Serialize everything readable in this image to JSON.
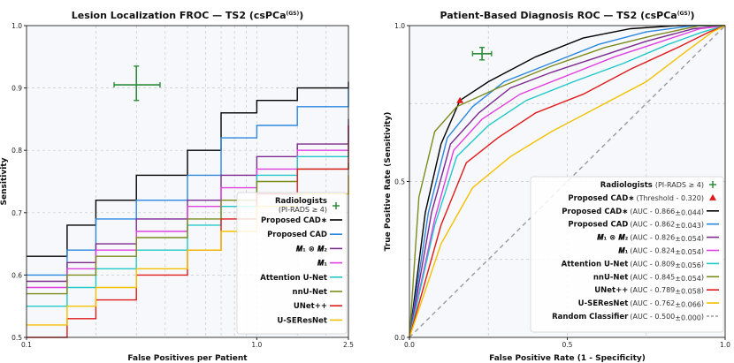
{
  "chart_data": [
    {
      "type": "line",
      "title": "Lesion Localization FROC — TS2 (csPCa",
      "title_sup": "(GS)",
      "title_close": ")",
      "xlabel": "False Positives per Patient",
      "ylabel": "Sensitivity",
      "xscale": "log",
      "xlim": [
        0.1,
        2.5
      ],
      "ylim": [
        0.5,
        1.0
      ],
      "xticks": [
        {
          "v": 0.1,
          "label": "0.1"
        },
        {
          "v": 1.0,
          "label": "1.0"
        },
        {
          "v": 2.5,
          "label": "2.5"
        }
      ],
      "yticks": [
        {
          "v": 0.5,
          "label": "0.5"
        },
        {
          "v": 0.6,
          "label": "0.6"
        },
        {
          "v": 0.7,
          "label": "0.7"
        },
        {
          "v": 0.8,
          "label": "0.8"
        },
        {
          "v": 0.9,
          "label": "0.9"
        },
        {
          "v": 1.0,
          "label": "1.0"
        }
      ],
      "radiologists": {
        "label": "Radiologists",
        "sublabel": "(PI-RADS ≥ 4)",
        "x": 0.3,
        "y": 0.905,
        "xerr": [
          0.24,
          0.38
        ],
        "yerr": [
          0.88,
          0.935
        ],
        "color": "#2e8b3a"
      },
      "series": [
        {
          "name": "Proposed CAD∗",
          "color": "#000000",
          "points": [
            [
              0.1,
              0.63
            ],
            [
              0.15,
              0.68
            ],
            [
              0.2,
              0.72
            ],
            [
              0.3,
              0.76
            ],
            [
              0.5,
              0.8
            ],
            [
              0.7,
              0.86
            ],
            [
              1.0,
              0.88
            ],
            [
              1.5,
              0.9
            ],
            [
              2.5,
              0.91
            ]
          ]
        },
        {
          "name": "Proposed CAD",
          "color": "#2b88e0",
          "points": [
            [
              0.1,
              0.6
            ],
            [
              0.15,
              0.64
            ],
            [
              0.2,
              0.69
            ],
            [
              0.3,
              0.72
            ],
            [
              0.5,
              0.76
            ],
            [
              0.7,
              0.82
            ],
            [
              1.0,
              0.84
            ],
            [
              1.5,
              0.87
            ],
            [
              2.5,
              0.9
            ]
          ]
        },
        {
          "name": "M1 ⊗ M2",
          "nameHtml": "𝑴₁ ⊗ 𝑴₂",
          "color": "#7b2a8e",
          "points": [
            [
              0.1,
              0.59
            ],
            [
              0.15,
              0.62
            ],
            [
              0.2,
              0.65
            ],
            [
              0.3,
              0.69
            ],
            [
              0.5,
              0.72
            ],
            [
              0.7,
              0.76
            ],
            [
              1.0,
              0.79
            ],
            [
              1.5,
              0.81
            ],
            [
              2.5,
              0.85
            ]
          ]
        },
        {
          "name": "M1",
          "nameHtml": "𝑴₁",
          "color": "#e040e0",
          "points": [
            [
              0.1,
              0.58
            ],
            [
              0.15,
              0.61
            ],
            [
              0.2,
              0.64
            ],
            [
              0.3,
              0.67
            ],
            [
              0.5,
              0.71
            ],
            [
              0.7,
              0.74
            ],
            [
              1.0,
              0.77
            ],
            [
              1.5,
              0.8
            ],
            [
              2.5,
              0.84
            ]
          ]
        },
        {
          "name": "Attention U-Net",
          "color": "#22c7c7",
          "points": [
            [
              0.1,
              0.55
            ],
            [
              0.15,
              0.58
            ],
            [
              0.2,
              0.61
            ],
            [
              0.3,
              0.64
            ],
            [
              0.5,
              0.68
            ],
            [
              0.7,
              0.71
            ],
            [
              1.0,
              0.76
            ],
            [
              1.5,
              0.79
            ],
            [
              2.5,
              0.83
            ]
          ]
        },
        {
          "name": "nnU-Net",
          "color": "#7d8a1c",
          "points": [
            [
              0.1,
              0.57
            ],
            [
              0.15,
              0.6
            ],
            [
              0.2,
              0.63
            ],
            [
              0.3,
              0.66
            ],
            [
              0.5,
              0.69
            ],
            [
              0.7,
              0.72
            ],
            [
              1.0,
              0.75
            ],
            [
              1.5,
              0.77
            ],
            [
              2.5,
              0.78
            ]
          ]
        },
        {
          "name": "UNet++",
          "color": "#e01a1a",
          "points": [
            [
              0.1,
              0.5
            ],
            [
              0.15,
              0.53
            ],
            [
              0.2,
              0.56
            ],
            [
              0.3,
              0.6
            ],
            [
              0.5,
              0.64
            ],
            [
              0.7,
              0.69
            ],
            [
              1.0,
              0.73
            ],
            [
              1.5,
              0.77
            ],
            [
              2.5,
              0.84
            ]
          ]
        },
        {
          "name": "U-SEResNet",
          "color": "#f5c000",
          "points": [
            [
              0.1,
              0.52
            ],
            [
              0.15,
              0.55
            ],
            [
              0.2,
              0.58
            ],
            [
              0.3,
              0.61
            ],
            [
              0.5,
              0.64
            ],
            [
              0.7,
              0.67
            ],
            [
              1.0,
              0.71
            ],
            [
              1.5,
              0.73
            ],
            [
              2.5,
              0.76
            ]
          ]
        }
      ]
    },
    {
      "type": "line",
      "title": "Patient-Based Diagnosis ROC — TS2 (csPCa",
      "title_sup": "(GS)",
      "title_close": ")",
      "xlabel": "False Positive Rate (1 - Specificity)",
      "ylabel": "True Positive Rate (Sensitivity)",
      "xlim": [
        0.0,
        1.0
      ],
      "ylim": [
        0.0,
        1.0
      ],
      "xticks": [
        {
          "v": 0.0,
          "label": "0.0"
        },
        {
          "v": 0.5,
          "label": "0.5"
        },
        {
          "v": 1.0,
          "label": "1.0"
        }
      ],
      "yticks": [
        {
          "v": 0.0,
          "label": "0.0"
        },
        {
          "v": 0.5,
          "label": "0.5"
        },
        {
          "v": 1.0,
          "label": "1.0"
        }
      ],
      "radiologists": {
        "label": "Radiologists",
        "sublabel": "(PI-RADS ≥ 4)",
        "x": 0.23,
        "y": 0.91,
        "xerr": [
          0.2,
          0.26
        ],
        "yerr": [
          0.89,
          0.93
        ],
        "color": "#2e8b3a"
      },
      "threshold": {
        "label": "Proposed CAD∗",
        "sublabel": "(Threshold - 0.320)",
        "x": 0.16,
        "y": 0.76,
        "color": "#e01a1a"
      },
      "series": [
        {
          "name": "Proposed CAD∗",
          "auc": "(AUC - 0.866",
          "ci": "±0.044",
          "color": "#000000",
          "points": [
            [
              0,
              0
            ],
            [
              0.05,
              0.4
            ],
            [
              0.1,
              0.62
            ],
            [
              0.16,
              0.76
            ],
            [
              0.25,
              0.82
            ],
            [
              0.4,
              0.9
            ],
            [
              0.55,
              0.96
            ],
            [
              0.7,
              0.99
            ],
            [
              0.85,
              1.0
            ],
            [
              1,
              1
            ]
          ]
        },
        {
          "name": "Proposed CAD",
          "auc": "(AUC - 0.862",
          "ci": "±0.043",
          "color": "#2b88e0",
          "points": [
            [
              0,
              0
            ],
            [
              0.06,
              0.4
            ],
            [
              0.12,
              0.64
            ],
            [
              0.2,
              0.74
            ],
            [
              0.3,
              0.82
            ],
            [
              0.45,
              0.88
            ],
            [
              0.6,
              0.94
            ],
            [
              0.75,
              0.98
            ],
            [
              0.9,
              1.0
            ],
            [
              1,
              1
            ]
          ]
        },
        {
          "name": "M1 ⊗ M2",
          "nameHtml": "𝑴₁ ⊗ 𝑴₂",
          "auc": "(AUC - 0.826",
          "ci": "±0.054",
          "color": "#7b2a8e",
          "points": [
            [
              0,
              0
            ],
            [
              0.07,
              0.4
            ],
            [
              0.13,
              0.62
            ],
            [
              0.22,
              0.72
            ],
            [
              0.32,
              0.8
            ],
            [
              0.45,
              0.85
            ],
            [
              0.6,
              0.9
            ],
            [
              0.75,
              0.95
            ],
            [
              0.9,
              0.99
            ],
            [
              1,
              1
            ]
          ]
        },
        {
          "name": "M1",
          "nameHtml": "𝑴₁",
          "auc": "(AUC - 0.824",
          "ci": "±0.054",
          "color": "#e040e0",
          "points": [
            [
              0,
              0
            ],
            [
              0.08,
              0.38
            ],
            [
              0.14,
              0.6
            ],
            [
              0.23,
              0.7
            ],
            [
              0.35,
              0.78
            ],
            [
              0.5,
              0.84
            ],
            [
              0.65,
              0.9
            ],
            [
              0.8,
              0.95
            ],
            [
              0.92,
              0.99
            ],
            [
              1,
              1
            ]
          ]
        },
        {
          "name": "Attention U-Net",
          "auc": "(AUC - 0.809",
          "ci": "±0.056",
          "color": "#22c7c7",
          "points": [
            [
              0,
              0
            ],
            [
              0.08,
              0.36
            ],
            [
              0.15,
              0.58
            ],
            [
              0.25,
              0.68
            ],
            [
              0.37,
              0.76
            ],
            [
              0.52,
              0.82
            ],
            [
              0.68,
              0.88
            ],
            [
              0.82,
              0.94
            ],
            [
              0.93,
              0.98
            ],
            [
              1,
              1
            ]
          ]
        },
        {
          "name": "nnU-Net",
          "auc": "(AUC - 0.845",
          "ci": "±0.054",
          "color": "#7d8a1c",
          "points": [
            [
              0,
              0
            ],
            [
              0.03,
              0.45
            ],
            [
              0.08,
              0.66
            ],
            [
              0.15,
              0.74
            ],
            [
              0.28,
              0.8
            ],
            [
              0.45,
              0.87
            ],
            [
              0.62,
              0.93
            ],
            [
              0.78,
              0.97
            ],
            [
              0.92,
              1.0
            ],
            [
              1,
              1
            ]
          ]
        },
        {
          "name": "UNet++",
          "auc": "(AUC - 0.789",
          "ci": "±0.058",
          "color": "#e01a1a",
          "points": [
            [
              0,
              0
            ],
            [
              0.1,
              0.36
            ],
            [
              0.18,
              0.56
            ],
            [
              0.28,
              0.64
            ],
            [
              0.4,
              0.72
            ],
            [
              0.55,
              0.78
            ],
            [
              0.7,
              0.86
            ],
            [
              0.85,
              0.93
            ],
            [
              0.95,
              0.98
            ],
            [
              1,
              1
            ]
          ]
        },
        {
          "name": "U-SEResNet",
          "auc": "(AUC - 0.762",
          "ci": "±0.066",
          "color": "#f5c000",
          "points": [
            [
              0,
              0
            ],
            [
              0.1,
              0.3
            ],
            [
              0.2,
              0.48
            ],
            [
              0.32,
              0.58
            ],
            [
              0.45,
              0.66
            ],
            [
              0.6,
              0.74
            ],
            [
              0.75,
              0.82
            ],
            [
              0.88,
              0.92
            ],
            [
              0.96,
              0.98
            ],
            [
              1,
              1
            ]
          ]
        },
        {
          "name": "Random Classifier",
          "auc": "(AUC - 0.500",
          "ci": "±0.000",
          "color": "#999999",
          "dashed": true,
          "points": [
            [
              0,
              0
            ],
            [
              1,
              1
            ]
          ]
        }
      ]
    }
  ]
}
